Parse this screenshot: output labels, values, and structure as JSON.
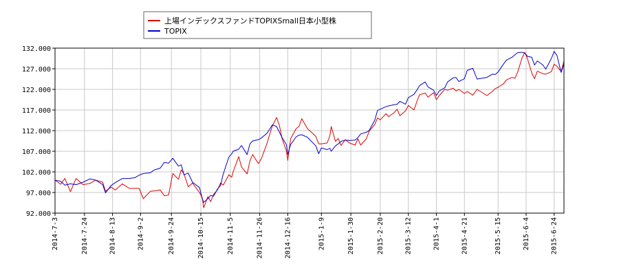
{
  "chart_data": {
    "type": "line",
    "title": "",
    "xlabel": "",
    "ylabel": "",
    "ylim": [
      92.0,
      132.0
    ],
    "y_ticks": [
      "92.000",
      "97.000",
      "102.000",
      "107.000",
      "112.000",
      "117.000",
      "122.000",
      "127.000",
      "132.000"
    ],
    "x_range": [
      "2014-07-03",
      "2015-07-01"
    ],
    "x_ticks": [
      "2014-7-3",
      "2014-7-24",
      "2014-8-13",
      "2014-9-2",
      "2014-9-24",
      "2014-10-15",
      "2014-11-5",
      "2014-11-26",
      "2014-12-16",
      "2015-1-9",
      "2015-1-30",
      "2015-2-20",
      "2015-3-12",
      "2015-4-1",
      "2015-4-21",
      "2015-5-15",
      "2015-6-4",
      "2015-6-24"
    ],
    "grid": true,
    "legend_position": "top-left",
    "series": [
      {
        "name": "上場インデックスファンドTOPIXSmall日本小型株",
        "color": "#dd0000",
        "points": [
          [
            "2014-07-03",
            100.0
          ],
          [
            "2014-07-07",
            99.0
          ],
          [
            "2014-07-10",
            100.4
          ],
          [
            "2014-07-14",
            97.2
          ],
          [
            "2014-07-18",
            100.4
          ],
          [
            "2014-07-23",
            98.9
          ],
          [
            "2014-07-28",
            99.2
          ],
          [
            "2014-08-01",
            100.0
          ],
          [
            "2014-08-06",
            99.5
          ],
          [
            "2014-08-08",
            97.3
          ],
          [
            "2014-08-12",
            98.3
          ],
          [
            "2014-08-15",
            97.6
          ],
          [
            "2014-08-20",
            99.1
          ],
          [
            "2014-08-25",
            98.0
          ],
          [
            "2014-08-29",
            98.0
          ],
          [
            "2014-09-01",
            98.0
          ],
          [
            "2014-09-04",
            95.5
          ],
          [
            "2014-09-09",
            97.3
          ],
          [
            "2014-09-12",
            97.4
          ],
          [
            "2014-09-16",
            97.6
          ],
          [
            "2014-09-19",
            96.2
          ],
          [
            "2014-09-22",
            96.4
          ],
          [
            "2014-09-25",
            101.6
          ],
          [
            "2014-09-29",
            100.2
          ],
          [
            "2014-10-01",
            102.5
          ],
          [
            "2014-10-03",
            101.5
          ],
          [
            "2014-10-06",
            98.4
          ],
          [
            "2014-10-09",
            99.3
          ],
          [
            "2014-10-14",
            97.0
          ],
          [
            "2014-10-16",
            95.8
          ],
          [
            "2014-10-17",
            93.3
          ],
          [
            "2014-10-20",
            96.0
          ],
          [
            "2014-10-22",
            94.8
          ],
          [
            "2014-10-24",
            96.5
          ],
          [
            "2014-10-27",
            97.7
          ],
          [
            "2014-10-29",
            99.3
          ],
          [
            "2014-10-31",
            98.8
          ],
          [
            "2014-11-04",
            101.3
          ],
          [
            "2014-11-06",
            100.7
          ],
          [
            "2014-11-07",
            102.0
          ],
          [
            "2014-11-11",
            105.7
          ],
          [
            "2014-11-13",
            103.2
          ],
          [
            "2014-11-17",
            101.5
          ],
          [
            "2014-11-19",
            104.7
          ],
          [
            "2014-11-21",
            106.2
          ],
          [
            "2014-11-25",
            104.0
          ],
          [
            "2014-11-27",
            105.1
          ],
          [
            "2014-12-01",
            108.7
          ],
          [
            "2014-12-03",
            111.0
          ],
          [
            "2014-12-05",
            113.1
          ],
          [
            "2014-12-08",
            115.2
          ],
          [
            "2014-12-10",
            113.3
          ],
          [
            "2014-12-12",
            110.0
          ],
          [
            "2014-12-15",
            107.1
          ],
          [
            "2014-12-16",
            104.8
          ],
          [
            "2014-12-18",
            110.0
          ],
          [
            "2014-12-22",
            112.5
          ],
          [
            "2014-12-24",
            113.0
          ],
          [
            "2014-12-26",
            114.9
          ],
          [
            "2014-12-30",
            112.5
          ],
          [
            "2015-01-05",
            110.6
          ],
          [
            "2015-01-07",
            108.8
          ],
          [
            "2015-01-09",
            108.8
          ],
          [
            "2015-01-13",
            109.0
          ],
          [
            "2015-01-15",
            110.7
          ],
          [
            "2015-01-16",
            113.0
          ],
          [
            "2015-01-19",
            109.4
          ],
          [
            "2015-01-21",
            110.1
          ],
          [
            "2015-01-23",
            108.4
          ],
          [
            "2015-01-26",
            109.8
          ],
          [
            "2015-01-29",
            109.0
          ],
          [
            "2015-02-02",
            108.5
          ],
          [
            "2015-02-04",
            110.0
          ],
          [
            "2015-02-06",
            108.5
          ],
          [
            "2015-02-10",
            110.0
          ],
          [
            "2015-02-12",
            111.8
          ],
          [
            "2015-02-16",
            113.5
          ],
          [
            "2015-02-18",
            115.1
          ],
          [
            "2015-02-20",
            114.6
          ],
          [
            "2015-02-24",
            116.1
          ],
          [
            "2015-02-26",
            115.4
          ],
          [
            "2015-03-02",
            116.4
          ],
          [
            "2015-03-04",
            117.2
          ],
          [
            "2015-03-06",
            115.6
          ],
          [
            "2015-03-10",
            116.8
          ],
          [
            "2015-03-12",
            118.1
          ],
          [
            "2015-03-16",
            117.0
          ],
          [
            "2015-03-18",
            119.0
          ],
          [
            "2015-03-20",
            120.7
          ],
          [
            "2015-03-24",
            121.1
          ],
          [
            "2015-03-26",
            120.1
          ],
          [
            "2015-03-30",
            121.2
          ],
          [
            "2015-04-01",
            119.5
          ],
          [
            "2015-04-03",
            120.5
          ],
          [
            "2015-04-07",
            122.0
          ],
          [
            "2015-04-09",
            121.8
          ],
          [
            "2015-04-13",
            122.3
          ],
          [
            "2015-04-15",
            121.6
          ],
          [
            "2015-04-17",
            122.0
          ],
          [
            "2015-04-21",
            121.0
          ],
          [
            "2015-04-23",
            121.5
          ],
          [
            "2015-04-27",
            120.6
          ],
          [
            "2015-04-30",
            122.0
          ],
          [
            "2015-05-07",
            120.5
          ],
          [
            "2015-05-11",
            121.5
          ],
          [
            "2015-05-13",
            122.2
          ],
          [
            "2015-05-15",
            122.5
          ],
          [
            "2015-05-19",
            123.4
          ],
          [
            "2015-05-21",
            124.3
          ],
          [
            "2015-05-25",
            124.9
          ],
          [
            "2015-05-27",
            124.7
          ],
          [
            "2015-05-29",
            126.2
          ],
          [
            "2015-06-01",
            129.5
          ],
          [
            "2015-06-03",
            131.0
          ],
          [
            "2015-06-05",
            129.4
          ],
          [
            "2015-06-08",
            126.0
          ],
          [
            "2015-06-10",
            124.6
          ],
          [
            "2015-06-12",
            126.4
          ],
          [
            "2015-06-16",
            125.8
          ],
          [
            "2015-06-18",
            125.7
          ],
          [
            "2015-06-22",
            126.3
          ],
          [
            "2015-06-24",
            128.1
          ],
          [
            "2015-06-26",
            127.6
          ],
          [
            "2015-06-29",
            126.3
          ],
          [
            "2015-07-01",
            128.9
          ]
        ]
      },
      {
        "name": "TOPIX",
        "color": "#0000cc",
        "points": [
          [
            "2014-07-03",
            100.0
          ],
          [
            "2014-07-07",
            99.7
          ],
          [
            "2014-07-10",
            98.8
          ],
          [
            "2014-07-14",
            99.1
          ],
          [
            "2014-07-18",
            98.9
          ],
          [
            "2014-07-23",
            99.5
          ],
          [
            "2014-07-28",
            100.3
          ],
          [
            "2014-08-01",
            100.0
          ],
          [
            "2014-08-06",
            98.9
          ],
          [
            "2014-08-08",
            96.9
          ],
          [
            "2014-08-12",
            98.7
          ],
          [
            "2014-08-15",
            99.4
          ],
          [
            "2014-08-20",
            100.4
          ],
          [
            "2014-08-25",
            100.4
          ],
          [
            "2014-08-29",
            100.6
          ],
          [
            "2014-09-01",
            101.2
          ],
          [
            "2014-09-04",
            101.6
          ],
          [
            "2014-09-09",
            101.8
          ],
          [
            "2014-09-12",
            102.5
          ],
          [
            "2014-09-16",
            102.9
          ],
          [
            "2014-09-19",
            104.3
          ],
          [
            "2014-09-22",
            104.1
          ],
          [
            "2014-09-25",
            105.3
          ],
          [
            "2014-09-29",
            103.4
          ],
          [
            "2014-10-01",
            103.7
          ],
          [
            "2014-10-03",
            101.3
          ],
          [
            "2014-10-06",
            101.7
          ],
          [
            "2014-10-09",
            99.5
          ],
          [
            "2014-10-14",
            98.2
          ],
          [
            "2014-10-16",
            95.6
          ],
          [
            "2014-10-17",
            94.6
          ],
          [
            "2014-10-20",
            95.5
          ],
          [
            "2014-10-22",
            96.3
          ],
          [
            "2014-10-24",
            96.1
          ],
          [
            "2014-10-27",
            97.9
          ],
          [
            "2014-10-29",
            98.7
          ],
          [
            "2014-10-31",
            101.5
          ],
          [
            "2014-11-04",
            105.6
          ],
          [
            "2014-11-06",
            106.4
          ],
          [
            "2014-11-07",
            107.0
          ],
          [
            "2014-11-11",
            107.5
          ],
          [
            "2014-11-13",
            108.4
          ],
          [
            "2014-11-17",
            106.2
          ],
          [
            "2014-11-19",
            108.8
          ],
          [
            "2014-11-21",
            109.5
          ],
          [
            "2014-11-25",
            109.8
          ],
          [
            "2014-11-27",
            110.2
          ],
          [
            "2014-12-01",
            111.3
          ],
          [
            "2014-12-03",
            112.3
          ],
          [
            "2014-12-05",
            113.4
          ],
          [
            "2014-12-08",
            113.0
          ],
          [
            "2014-12-10",
            111.6
          ],
          [
            "2014-12-12",
            110.3
          ],
          [
            "2014-12-15",
            108.6
          ],
          [
            "2014-12-16",
            106.2
          ],
          [
            "2014-12-18",
            108.6
          ],
          [
            "2014-12-22",
            110.5
          ],
          [
            "2014-12-24",
            110.9
          ],
          [
            "2014-12-26",
            111.0
          ],
          [
            "2014-12-30",
            110.4
          ],
          [
            "2015-01-05",
            108.3
          ],
          [
            "2015-01-07",
            106.4
          ],
          [
            "2015-01-09",
            107.8
          ],
          [
            "2015-01-13",
            107.4
          ],
          [
            "2015-01-15",
            107.7
          ],
          [
            "2015-01-16",
            107.0
          ],
          [
            "2015-01-19",
            108.3
          ],
          [
            "2015-01-21",
            108.8
          ],
          [
            "2015-01-23",
            109.4
          ],
          [
            "2015-01-26",
            109.7
          ],
          [
            "2015-01-29",
            109.6
          ],
          [
            "2015-02-02",
            109.7
          ],
          [
            "2015-02-04",
            110.3
          ],
          [
            "2015-02-06",
            111.2
          ],
          [
            "2015-02-10",
            111.6
          ],
          [
            "2015-02-12",
            112.0
          ],
          [
            "2015-02-16",
            114.5
          ],
          [
            "2015-02-18",
            116.9
          ],
          [
            "2015-02-20",
            117.2
          ],
          [
            "2015-02-24",
            117.8
          ],
          [
            "2015-02-26",
            118.0
          ],
          [
            "2015-03-02",
            118.3
          ],
          [
            "2015-03-04",
            118.4
          ],
          [
            "2015-03-06",
            119.1
          ],
          [
            "2015-03-10",
            118.4
          ],
          [
            "2015-03-12",
            120.0
          ],
          [
            "2015-03-16",
            120.8
          ],
          [
            "2015-03-18",
            121.8
          ],
          [
            "2015-03-20",
            122.9
          ],
          [
            "2015-03-24",
            123.8
          ],
          [
            "2015-03-26",
            122.6
          ],
          [
            "2015-03-30",
            121.8
          ],
          [
            "2015-04-01",
            120.5
          ],
          [
            "2015-04-03",
            121.6
          ],
          [
            "2015-04-07",
            122.4
          ],
          [
            "2015-04-09",
            123.8
          ],
          [
            "2015-04-13",
            124.8
          ],
          [
            "2015-04-15",
            124.9
          ],
          [
            "2015-04-17",
            123.9
          ],
          [
            "2015-04-21",
            124.6
          ],
          [
            "2015-04-23",
            126.6
          ],
          [
            "2015-04-27",
            127.1
          ],
          [
            "2015-04-30",
            124.5
          ],
          [
            "2015-05-07",
            124.9
          ],
          [
            "2015-05-11",
            125.7
          ],
          [
            "2015-05-13",
            125.6
          ],
          [
            "2015-05-15",
            126.2
          ],
          [
            "2015-05-19",
            128.2
          ],
          [
            "2015-05-21",
            129.1
          ],
          [
            "2015-05-25",
            129.8
          ],
          [
            "2015-05-27",
            130.4
          ],
          [
            "2015-05-29",
            130.9
          ],
          [
            "2015-06-01",
            131.0
          ],
          [
            "2015-06-03",
            130.8
          ],
          [
            "2015-06-05",
            130.0
          ],
          [
            "2015-06-08",
            129.8
          ],
          [
            "2015-06-10",
            127.9
          ],
          [
            "2015-06-12",
            128.9
          ],
          [
            "2015-06-16",
            127.9
          ],
          [
            "2015-06-18",
            126.9
          ],
          [
            "2015-06-22",
            129.5
          ],
          [
            "2015-06-24",
            131.2
          ],
          [
            "2015-06-26",
            130.2
          ],
          [
            "2015-06-29",
            126.1
          ],
          [
            "2015-07-01",
            128.2
          ]
        ]
      }
    ]
  }
}
